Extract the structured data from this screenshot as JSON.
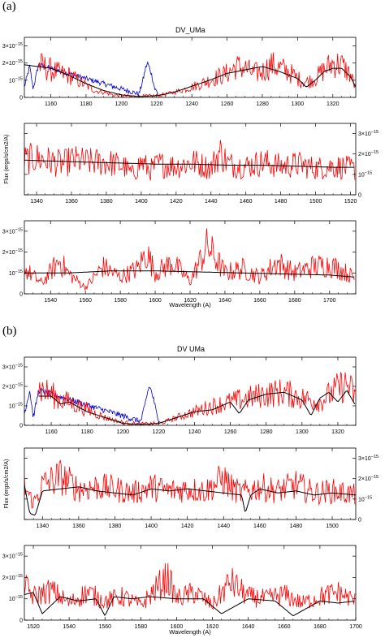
{
  "figure": {
    "panel_a_label": "(a)",
    "panel_b_label": "(b)",
    "title_a": "DV_UMa",
    "title_b": "DV UMa"
  },
  "colors": {
    "observed": "#ff0000",
    "model": "#000000",
    "lyman_alpha": "#0000cc",
    "axis": "#000000"
  },
  "chart_data": [
    {
      "type": "line",
      "panel": "a",
      "row": 1,
      "title": "DV_UMa",
      "xlim": [
        1145,
        1333
      ],
      "ylim": [
        0,
        3.5
      ],
      "xticks": [
        1160,
        1180,
        1200,
        1220,
        1240,
        1260,
        1280,
        1300,
        1320
      ],
      "yticks": [
        0,
        1,
        2,
        3
      ],
      "ytick_labels": [
        "0",
        "10⁻¹⁵",
        "2×10⁻¹⁵",
        "3×10⁻¹⁵"
      ],
      "yaxis_side": "left",
      "xlabel": "",
      "ylabel": "",
      "series": [
        {
          "role": "lyman_alpha",
          "x": [
            1145,
            1148,
            1150,
            1153,
            1210,
            1212,
            1214,
            1215,
            1217,
            1219,
            1221
          ],
          "y": [
            0.6,
            1.8,
            0.5,
            1.9,
            0.2,
            0.9,
            1.8,
            2.0,
            1.4,
            0.5,
            0.2
          ]
        },
        {
          "role": "observed",
          "x": [
            1153,
            1160,
            1165,
            1170,
            1175,
            1180,
            1185,
            1190,
            1195,
            1200,
            1205,
            1210,
            1221,
            1230,
            1240,
            1250,
            1260,
            1265,
            1270,
            1275,
            1280,
            1285,
            1290,
            1295,
            1300,
            1305,
            1310,
            1315,
            1320,
            1325,
            1330,
            1333
          ],
          "y": [
            1.9,
            1.6,
            1.4,
            1.3,
            1.0,
            0.7,
            0.4,
            0.3,
            0.15,
            0.1,
            0.05,
            0.05,
            0.1,
            0.3,
            0.6,
            1.0,
            1.4,
            1.8,
            1.7,
            1.4,
            1.5,
            1.9,
            1.7,
            1.5,
            1.1,
            0.9,
            1.1,
            1.6,
            2.0,
            1.9,
            1.3,
            0.5
          ]
        },
        {
          "role": "model",
          "x": [
            1145,
            1160,
            1170,
            1180,
            1190,
            1200,
            1210,
            1220,
            1230,
            1240,
            1250,
            1260,
            1270,
            1280,
            1290,
            1300,
            1305,
            1310,
            1315,
            1320,
            1325,
            1330,
            1333
          ],
          "y": [
            1.9,
            1.7,
            1.3,
            0.8,
            0.4,
            0.15,
            0.05,
            0.1,
            0.3,
            0.65,
            1.0,
            1.4,
            1.6,
            1.8,
            1.5,
            1.1,
            0.6,
            1.0,
            1.5,
            1.7,
            1.7,
            1.2,
            0.6
          ]
        }
      ]
    },
    {
      "type": "line",
      "panel": "a",
      "row": 2,
      "xlim": [
        1333,
        1523
      ],
      "ylim": [
        0,
        3.5
      ],
      "xticks": [
        1340,
        1360,
        1380,
        1400,
        1420,
        1440,
        1460,
        1480,
        1500,
        1520
      ],
      "yticks": [
        0,
        1,
        2,
        3
      ],
      "ytick_labels": [
        "0",
        "10⁻¹⁵",
        "2×10⁻¹⁵",
        "3×10⁻¹⁵"
      ],
      "yaxis_side": "right",
      "ylabel": "Flux (ergs/s/cm2/A)",
      "series": [
        {
          "role": "observed",
          "x": [
            1333,
            1340,
            1350,
            1355,
            1360,
            1370,
            1380,
            1390,
            1395,
            1400,
            1405,
            1410,
            1420,
            1430,
            1440,
            1445,
            1450,
            1460,
            1470,
            1480,
            1490,
            1500,
            1510,
            1520,
            1523
          ],
          "y": [
            1.7,
            1.8,
            1.6,
            1.5,
            1.7,
            1.6,
            1.6,
            1.4,
            1.0,
            1.6,
            1.2,
            1.5,
            1.4,
            1.6,
            1.3,
            2.1,
            1.5,
            1.4,
            1.6,
            1.4,
            1.5,
            1.3,
            1.4,
            1.3,
            1.2
          ]
        },
        {
          "role": "model",
          "x": [
            1333,
            1350,
            1370,
            1390,
            1410,
            1430,
            1450,
            1470,
            1490,
            1510,
            1523
          ],
          "y": [
            1.7,
            1.65,
            1.6,
            1.55,
            1.5,
            1.5,
            1.45,
            1.45,
            1.4,
            1.35,
            1.35
          ]
        }
      ]
    },
    {
      "type": "line",
      "panel": "a",
      "row": 3,
      "xlim": [
        1525,
        1715
      ],
      "ylim": [
        0,
        3.5
      ],
      "xticks": [
        1540,
        1560,
        1580,
        1600,
        1620,
        1640,
        1660,
        1680,
        1700
      ],
      "yticks": [
        0,
        1,
        2,
        3
      ],
      "ytick_labels": [
        "0",
        "10⁻¹⁵",
        "2×10⁻¹⁵",
        "3×10⁻¹⁵"
      ],
      "yaxis_side": "left",
      "xlabel": "Wavelength (A)",
      "series": [
        {
          "role": "observed",
          "x": [
            1525,
            1535,
            1545,
            1550,
            1560,
            1570,
            1580,
            1590,
            1595,
            1600,
            1610,
            1620,
            1630,
            1640,
            1650,
            1660,
            1670,
            1680,
            1690,
            1700,
            1710,
            1715
          ],
          "y": [
            1.2,
            0.5,
            1.6,
            1.0,
            0.3,
            1.3,
            0.8,
            1.2,
            2.0,
            1.0,
            1.5,
            0.6,
            2.3,
            1.0,
            1.2,
            0.8,
            1.5,
            1.0,
            1.3,
            1.4,
            1.0,
            0.7
          ]
        },
        {
          "role": "model",
          "x": [
            1525,
            1550,
            1575,
            1600,
            1625,
            1650,
            1675,
            1700,
            1715
          ],
          "y": [
            1.0,
            1.0,
            1.1,
            1.1,
            1.05,
            1.0,
            0.95,
            0.9,
            0.8
          ]
        }
      ]
    },
    {
      "type": "line",
      "panel": "b",
      "row": 1,
      "title": "DV UMa",
      "xlim": [
        1145,
        1330
      ],
      "ylim": [
        0,
        3.5
      ],
      "xticks": [
        1160,
        1180,
        1200,
        1220,
        1240,
        1260,
        1280,
        1300,
        1320
      ],
      "yticks": [
        0,
        1,
        2,
        3
      ],
      "ytick_labels": [
        "0",
        "10⁻¹⁵",
        "2×10⁻¹⁵",
        "3×10⁻¹⁵"
      ],
      "yaxis_side": "left",
      "series": [
        {
          "role": "lyman_alpha",
          "x": [
            1145,
            1148,
            1150,
            1153,
            1210,
            1212,
            1214,
            1215,
            1217,
            1219,
            1221
          ],
          "y": [
            0.6,
            1.8,
            0.4,
            1.8,
            0.2,
            0.9,
            1.8,
            2.0,
            1.4,
            0.5,
            0.2
          ]
        },
        {
          "role": "observed",
          "x": [
            1153,
            1160,
            1165,
            1170,
            1180,
            1190,
            1200,
            1210,
            1221,
            1230,
            1240,
            1250,
            1260,
            1270,
            1280,
            1290,
            1300,
            1310,
            1320,
            1325,
            1330
          ],
          "y": [
            1.9,
            1.6,
            1.3,
            1.2,
            0.8,
            0.4,
            0.15,
            0.05,
            0.1,
            0.4,
            0.7,
            1.0,
            1.2,
            1.4,
            1.6,
            1.7,
            1.4,
            1.2,
            1.9,
            2.1,
            1.5
          ]
        },
        {
          "role": "model",
          "x": [
            1153,
            1160,
            1165,
            1170,
            1180,
            1190,
            1200,
            1210,
            1220,
            1230,
            1240,
            1250,
            1260,
            1265,
            1270,
            1280,
            1290,
            1300,
            1305,
            1310,
            1315,
            1320,
            1325,
            1330
          ],
          "y": [
            1.5,
            1.5,
            1.1,
            1.2,
            0.7,
            0.4,
            0.1,
            0.05,
            0.1,
            0.4,
            0.7,
            0.8,
            1.2,
            0.6,
            1.3,
            1.6,
            1.7,
            1.3,
            0.5,
            1.4,
            1.7,
            1.2,
            1.8,
            1.0
          ]
        }
      ]
    },
    {
      "type": "line",
      "panel": "b",
      "row": 2,
      "xlim": [
        1330,
        1513
      ],
      "ylim": [
        0,
        3.5
      ],
      "xticks": [
        1340,
        1360,
        1380,
        1400,
        1420,
        1440,
        1460,
        1480,
        1500
      ],
      "yticks": [
        0,
        1,
        2,
        3
      ],
      "ytick_labels": [
        "0",
        "10⁻¹⁵",
        "2×10⁻¹⁵",
        "3×10⁻¹⁵"
      ],
      "yaxis_side": "right",
      "ylabel": "Flux (ergs/s/cm2/A)",
      "series": [
        {
          "role": "observed",
          "x": [
            1330,
            1335,
            1340,
            1350,
            1360,
            1370,
            1380,
            1390,
            1400,
            1410,
            1420,
            1430,
            1440,
            1445,
            1450,
            1460,
            1470,
            1480,
            1490,
            1500,
            1513
          ],
          "y": [
            1.6,
            0.8,
            1.7,
            2.1,
            1.5,
            1.6,
            1.5,
            1.3,
            1.6,
            1.4,
            1.5,
            1.4,
            2.0,
            1.5,
            1.3,
            1.6,
            1.4,
            1.7,
            1.3,
            1.4,
            1.2
          ]
        },
        {
          "role": "model",
          "x": [
            1330,
            1333,
            1336,
            1340,
            1350,
            1360,
            1370,
            1380,
            1390,
            1400,
            1410,
            1420,
            1430,
            1440,
            1450,
            1452,
            1455,
            1460,
            1470,
            1480,
            1490,
            1500,
            1513
          ],
          "y": [
            1.7,
            0.3,
            0.2,
            1.4,
            1.5,
            1.6,
            1.4,
            1.3,
            1.2,
            1.5,
            1.4,
            1.5,
            1.4,
            1.3,
            1.2,
            0.3,
            1.2,
            1.5,
            1.3,
            1.4,
            1.2,
            1.3,
            1.2
          ]
        }
      ]
    },
    {
      "type": "line",
      "panel": "b",
      "row": 3,
      "xlim": [
        1515,
        1700
      ],
      "ylim": [
        0,
        3.5
      ],
      "xticks": [
        1520,
        1540,
        1560,
        1580,
        1600,
        1620,
        1640,
        1660,
        1680,
        1700
      ],
      "yticks": [
        0,
        1,
        2,
        3
      ],
      "ytick_labels": [
        "0",
        "10⁻¹⁵",
        "2×10⁻¹⁵",
        "3×10⁻¹⁵"
      ],
      "yaxis_side": "left",
      "xlabel": "Wavelength (A)",
      "series": [
        {
          "role": "observed",
          "x": [
            1515,
            1520,
            1530,
            1540,
            1550,
            1560,
            1570,
            1580,
            1590,
            1595,
            1600,
            1610,
            1620,
            1630,
            1640,
            1650,
            1660,
            1670,
            1680,
            1690,
            1700
          ],
          "y": [
            1.6,
            1.1,
            1.4,
            0.8,
            1.3,
            0.9,
            1.1,
            0.7,
            1.6,
            2.0,
            1.0,
            1.3,
            0.7,
            1.8,
            1.1,
            1.0,
            1.2,
            0.8,
            1.1,
            1.3,
            0.9
          ]
        },
        {
          "role": "model",
          "x": [
            1515,
            1520,
            1525,
            1535,
            1545,
            1555,
            1560,
            1565,
            1575,
            1585,
            1600,
            1615,
            1625,
            1640,
            1655,
            1665,
            1680,
            1690,
            1700
          ],
          "y": [
            1.2,
            1.3,
            0.3,
            1.1,
            0.9,
            1.0,
            0.2,
            1.1,
            1.0,
            1.1,
            1.0,
            1.0,
            0.3,
            1.0,
            0.9,
            0.2,
            0.9,
            0.8,
            0.9
          ]
        }
      ]
    }
  ]
}
